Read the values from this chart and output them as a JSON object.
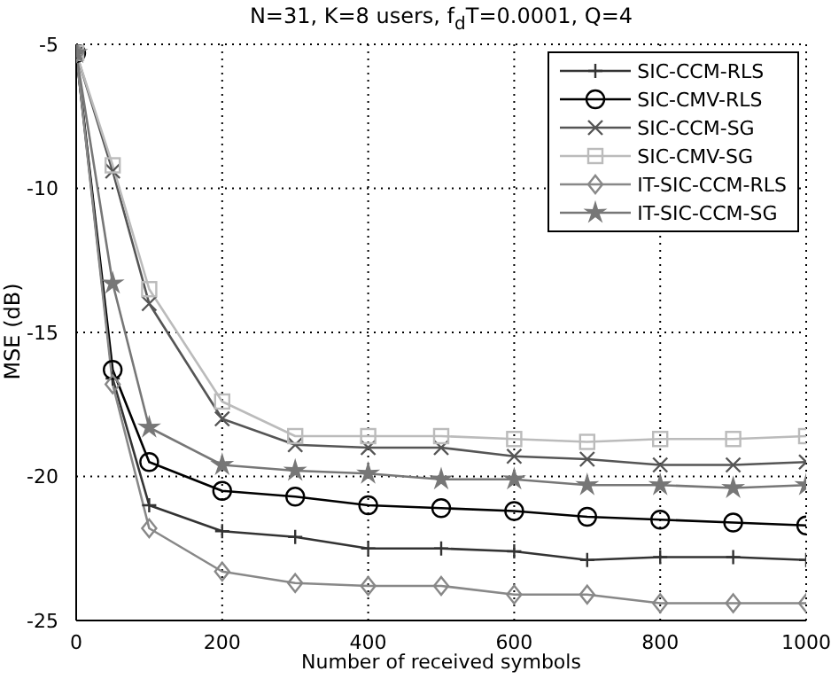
{
  "chart_data": {
    "type": "line",
    "title": "N=31, K=8 users, f$_{d}$T=0.0001, Q=4",
    "xlabel": "Number of received symbols",
    "ylabel": "MSE (dB)",
    "x": [
      0,
      50,
      100,
      200,
      300,
      400,
      500,
      600,
      700,
      800,
      900,
      1000
    ],
    "series": [
      {
        "name": "SIC-CCM-RLS",
        "color": "#333333",
        "marker": "plus",
        "values": [
          -5.3,
          -16.6,
          -21.0,
          -21.9,
          -22.1,
          -22.5,
          -22.5,
          -22.6,
          -22.9,
          -22.8,
          -22.8,
          -22.9
        ]
      },
      {
        "name": "SIC-CMV-RLS",
        "color": "#000000",
        "marker": "circle",
        "values": [
          -5.3,
          -16.3,
          -19.5,
          -20.5,
          -20.7,
          -21.0,
          -21.1,
          -21.2,
          -21.4,
          -21.5,
          -21.6,
          -21.7
        ]
      },
      {
        "name": "SIC-CCM-SG",
        "color": "#555555",
        "marker": "cross",
        "values": [
          -5.3,
          -9.4,
          -14.0,
          -18.0,
          -18.9,
          -19.0,
          -19.0,
          -19.3,
          -19.4,
          -19.6,
          -19.6,
          -19.5
        ]
      },
      {
        "name": "SIC-CMV-SG",
        "color": "#bbbbbb",
        "marker": "square",
        "values": [
          -5.3,
          -9.2,
          -13.5,
          -17.4,
          -18.6,
          -18.6,
          -18.6,
          -18.7,
          -18.8,
          -18.7,
          -18.7,
          -18.6
        ]
      },
      {
        "name": "IT-SIC-CCM-RLS",
        "color": "#888888",
        "marker": "diamond",
        "values": [
          -5.3,
          -16.8,
          -21.8,
          -23.3,
          -23.7,
          -23.8,
          -23.8,
          -24.1,
          -24.1,
          -24.4,
          -24.4,
          -24.4
        ]
      },
      {
        "name": "IT-SIC-CCM-SG",
        "color": "#777777",
        "marker": "star",
        "values": [
          -5.3,
          -13.3,
          -18.3,
          -19.6,
          -19.8,
          -19.9,
          -20.1,
          -20.1,
          -20.3,
          -20.3,
          -20.4,
          -20.3
        ]
      }
    ],
    "xlim": [
      0,
      1000
    ],
    "xticks": [
      0,
      200,
      400,
      600,
      800,
      1000
    ],
    "ylim": [
      -25,
      -5
    ],
    "yticks": [
      -25,
      -20,
      -15,
      -10,
      -5
    ],
    "grid": true,
    "legend": "top right",
    "line_style": "solid"
  }
}
